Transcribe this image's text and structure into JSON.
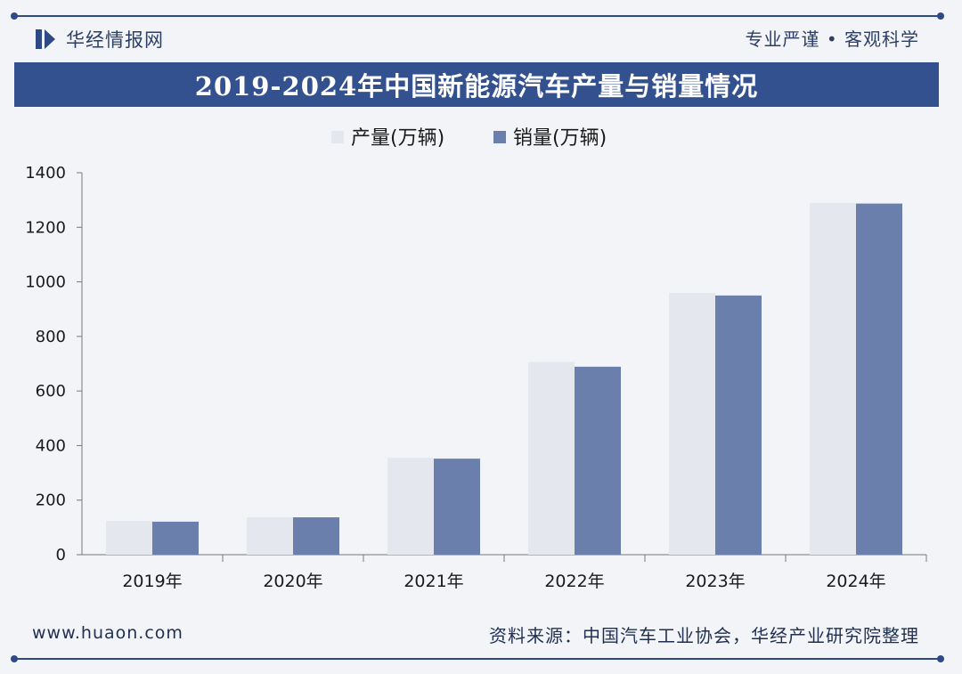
{
  "header": {
    "brand": "华经情报网",
    "slogan": "专业严谨 • 客观科学",
    "title": "2019-2024年中国新能源汽车产量与销量情况"
  },
  "footer": {
    "site": "www.huaon.com",
    "source": "资料来源：中国汽车工业协会，华经产业研究院整理"
  },
  "colors": {
    "production": "#e4e7ee",
    "sales": "#6a7fab",
    "accent": "#33508f"
  },
  "chart_data": {
    "type": "bar",
    "title": "2019-2024年中国新能源汽车产量与销量情况",
    "categories": [
      "2019年",
      "2020年",
      "2021年",
      "2022年",
      "2023年",
      "2024年"
    ],
    "series": [
      {
        "name": "产量(万辆)",
        "values": [
          124,
          137,
          355,
          706,
          959,
          1289
        ]
      },
      {
        "name": "销量(万辆)",
        "values": [
          121,
          137,
          352,
          689,
          950,
          1287
        ]
      }
    ],
    "ylim": [
      0,
      1400
    ],
    "yticks": [
      0,
      200,
      400,
      600,
      800,
      1000,
      1200,
      1400
    ],
    "xlabel": "",
    "ylabel": "",
    "legend": "top-center",
    "grid": false
  }
}
